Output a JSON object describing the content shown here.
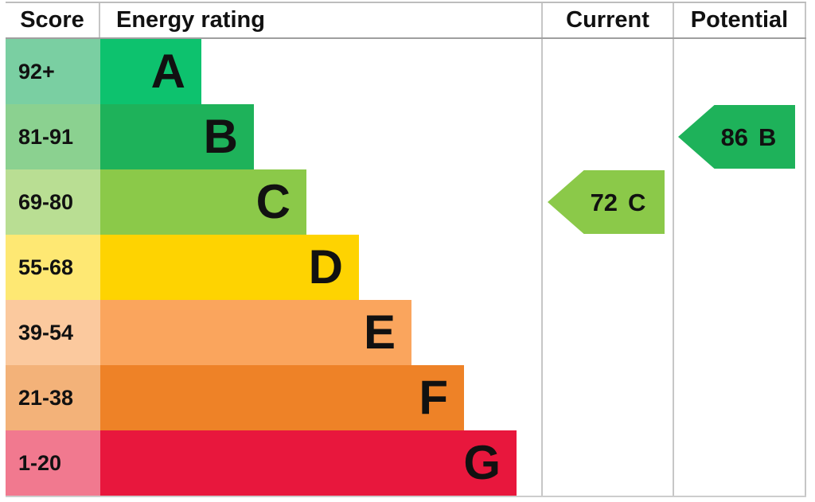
{
  "header": {
    "score": "Score",
    "energy_rating": "Energy rating",
    "current": "Current",
    "potential": "Potential"
  },
  "chart_data": {
    "type": "bar",
    "title": "Energy rating",
    "columns": [
      "Score",
      "Energy rating",
      "Current",
      "Potential"
    ],
    "bands": [
      {
        "grade": "A",
        "score_range": "92+",
        "bar_color": "#0dc26e",
        "score_bg": "#7acfa2"
      },
      {
        "grade": "B",
        "score_range": "81-91",
        "bar_color": "#1eb25a",
        "score_bg": "#8bd190"
      },
      {
        "grade": "C",
        "score_range": "69-80",
        "bar_color": "#8bc949",
        "score_bg": "#b9de93"
      },
      {
        "grade": "D",
        "score_range": "55-68",
        "bar_color": "#fed301",
        "score_bg": "#fee873"
      },
      {
        "grade": "E",
        "score_range": "39-54",
        "bar_color": "#faa55d",
        "score_bg": "#fbc99e"
      },
      {
        "grade": "F",
        "score_range": "21-38",
        "bar_color": "#ee8227",
        "score_bg": "#f3b279"
      },
      {
        "grade": "G",
        "score_range": "1-20",
        "bar_color": "#e8173d",
        "score_bg": "#f1798f"
      }
    ],
    "current": {
      "value": "72",
      "grade": "C",
      "color": "#8bc949"
    },
    "potential": {
      "value": "86",
      "grade": "B",
      "color": "#1eb25a"
    }
  }
}
